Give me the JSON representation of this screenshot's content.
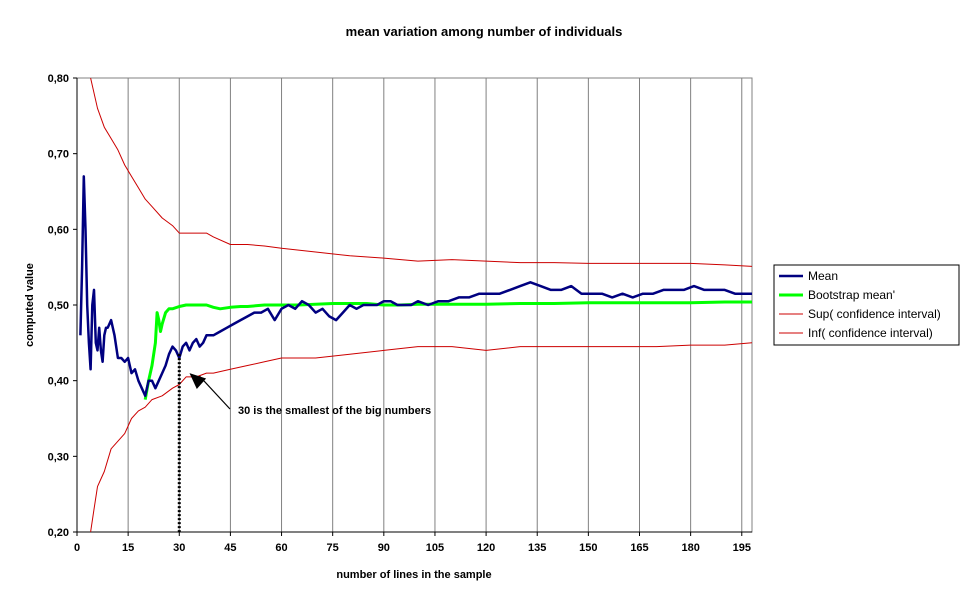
{
  "chart_data": {
    "type": "line",
    "title": "mean variation among number of individuals",
    "xlabel": "number of lines in the sample",
    "ylabel": "computed value",
    "xlim": [
      0,
      198
    ],
    "ylim": [
      0.2,
      0.8
    ],
    "x_ticks": [
      0,
      15,
      30,
      45,
      60,
      75,
      90,
      105,
      120,
      135,
      150,
      165,
      180,
      195
    ],
    "y_ticks": [
      "0,20",
      "0,30",
      "0,40",
      "0,50",
      "0,60",
      "0,70",
      "0,80"
    ],
    "y_tick_values": [
      0.2,
      0.3,
      0.4,
      0.5,
      0.6,
      0.7,
      0.8
    ],
    "grid": "vertical",
    "legend_position": "right",
    "series": [
      {
        "name": "Mean",
        "color": "#000080",
        "x": [
          1,
          1.5,
          2,
          2.5,
          3,
          3.5,
          4,
          4.5,
          5,
          5.5,
          6,
          6.5,
          7,
          7.5,
          8,
          8.5,
          9,
          10,
          11,
          12,
          13,
          14,
          15,
          16,
          17,
          18,
          19,
          20,
          21,
          22,
          23,
          24,
          25,
          26,
          27,
          28,
          29,
          30,
          31,
          32,
          33,
          34,
          35,
          36,
          37,
          38,
          40,
          42,
          44,
          46,
          48,
          50,
          52,
          54,
          56,
          58,
          60,
          62,
          64,
          66,
          68,
          70,
          72,
          74,
          76,
          78,
          80,
          82,
          84,
          86,
          88,
          90,
          92,
          94,
          96,
          98,
          100,
          103,
          106,
          109,
          112,
          115,
          118,
          121,
          124,
          127,
          130,
          133,
          136,
          139,
          142,
          145,
          148,
          151,
          154,
          157,
          160,
          163,
          166,
          169,
          172,
          175,
          178,
          181,
          184,
          187,
          190,
          193,
          196,
          198
        ],
        "y": [
          0.46,
          0.55,
          0.67,
          0.6,
          0.5,
          0.45,
          0.415,
          0.5,
          0.52,
          0.45,
          0.44,
          0.47,
          0.44,
          0.425,
          0.46,
          0.47,
          0.47,
          0.48,
          0.46,
          0.43,
          0.43,
          0.425,
          0.43,
          0.41,
          0.415,
          0.4,
          0.39,
          0.38,
          0.4,
          0.4,
          0.39,
          0.4,
          0.41,
          0.42,
          0.435,
          0.445,
          0.44,
          0.43,
          0.445,
          0.45,
          0.44,
          0.45,
          0.455,
          0.445,
          0.45,
          0.46,
          0.46,
          0.465,
          0.47,
          0.475,
          0.48,
          0.485,
          0.49,
          0.49,
          0.495,
          0.48,
          0.495,
          0.5,
          0.495,
          0.505,
          0.5,
          0.49,
          0.495,
          0.485,
          0.48,
          0.49,
          0.5,
          0.495,
          0.5,
          0.5,
          0.5,
          0.505,
          0.505,
          0.5,
          0.5,
          0.5,
          0.505,
          0.5,
          0.505,
          0.505,
          0.51,
          0.51,
          0.515,
          0.515,
          0.515,
          0.52,
          0.525,
          0.53,
          0.525,
          0.52,
          0.52,
          0.525,
          0.515,
          0.515,
          0.515,
          0.51,
          0.515,
          0.51,
          0.515,
          0.515,
          0.52,
          0.52,
          0.52,
          0.525,
          0.52,
          0.52,
          0.52,
          0.515,
          0.515,
          0.515
        ],
        "width": 2.5
      },
      {
        "name": "Bootstrap mean'",
        "color": "#00ff00",
        "x": [
          20,
          21,
          22,
          23,
          23.5,
          24,
          24.5,
          25,
          26,
          27,
          28,
          30,
          32,
          35,
          38,
          40,
          42,
          45,
          48,
          50,
          55,
          60,
          65,
          70,
          75,
          80,
          85,
          90,
          95,
          100,
          110,
          120,
          130,
          140,
          150,
          160,
          170,
          180,
          190,
          198
        ],
        "y": [
          0.375,
          0.4,
          0.42,
          0.45,
          0.49,
          0.48,
          0.465,
          0.475,
          0.49,
          0.495,
          0.495,
          0.498,
          0.5,
          0.5,
          0.5,
          0.497,
          0.495,
          0.497,
          0.498,
          0.498,
          0.5,
          0.5,
          0.5,
          0.501,
          0.502,
          0.502,
          0.502,
          0.5,
          0.5,
          0.501,
          0.501,
          0.501,
          0.502,
          0.502,
          0.503,
          0.503,
          0.503,
          0.503,
          0.504,
          0.504
        ],
        "width": 3
      },
      {
        "name": "Sup( confidence interval)",
        "color": "#cc0000",
        "x": [
          4,
          6,
          8,
          10,
          12,
          14,
          16,
          18,
          20,
          22,
          25,
          28,
          30,
          32,
          35,
          38,
          40,
          45,
          50,
          55,
          60,
          70,
          80,
          90,
          100,
          110,
          120,
          130,
          140,
          150,
          160,
          170,
          180,
          190,
          198
        ],
        "y": [
          0.8,
          0.76,
          0.735,
          0.72,
          0.705,
          0.685,
          0.67,
          0.655,
          0.64,
          0.63,
          0.615,
          0.605,
          0.595,
          0.595,
          0.595,
          0.595,
          0.59,
          0.58,
          0.58,
          0.578,
          0.575,
          0.57,
          0.565,
          0.562,
          0.558,
          0.56,
          0.558,
          0.556,
          0.556,
          0.555,
          0.555,
          0.555,
          0.555,
          0.553,
          0.551
        ],
        "width": 1
      },
      {
        "name": "Inf( confidence interval)",
        "color": "#cc0000",
        "x": [
          4,
          5,
          6,
          7,
          8,
          10,
          12,
          14,
          16,
          18,
          20,
          22,
          25,
          28,
          30,
          32,
          35,
          38,
          40,
          45,
          50,
          55,
          60,
          70,
          80,
          90,
          100,
          110,
          120,
          130,
          140,
          150,
          160,
          170,
          180,
          190,
          198
        ],
        "y": [
          0.2,
          0.23,
          0.26,
          0.27,
          0.28,
          0.31,
          0.32,
          0.33,
          0.35,
          0.36,
          0.365,
          0.375,
          0.38,
          0.39,
          0.395,
          0.405,
          0.405,
          0.41,
          0.41,
          0.415,
          0.42,
          0.425,
          0.43,
          0.43,
          0.435,
          0.44,
          0.445,
          0.445,
          0.44,
          0.445,
          0.445,
          0.445,
          0.445,
          0.445,
          0.447,
          0.447,
          0.45
        ],
        "width": 1
      }
    ],
    "marker_line": {
      "x": 30,
      "y_top": 0.435
    },
    "annotation": {
      "text": "30 is the smallest of the big numbers",
      "points_to_x": 33,
      "points_to_y": 0.41
    }
  }
}
